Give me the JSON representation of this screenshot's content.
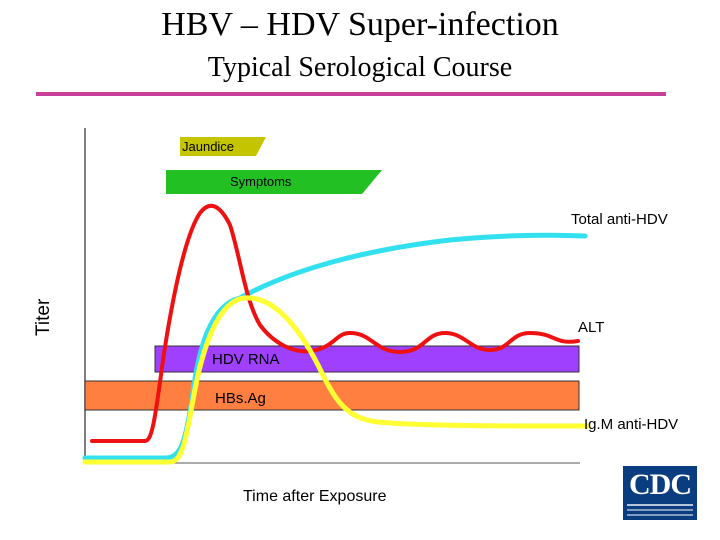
{
  "slide": {
    "title": "HBV – HDV Super-infection",
    "subtitle": "Typical Serological Course",
    "accent_color": "#c8409a"
  },
  "axes": {
    "ylabel": "Titer",
    "xlabel": "Time after Exposure"
  },
  "bars": {
    "jaundice": {
      "label": "Jaundice",
      "color": "#c4c400"
    },
    "symptoms": {
      "label": "Symptoms",
      "color": "#22c022"
    },
    "hdv_rna": {
      "label": "HDV RNA",
      "color": "#a040ff"
    },
    "hbsag": {
      "label": "HBs.Ag",
      "color": "#ff7f40"
    }
  },
  "curves": {
    "total_anti_hdv": {
      "label": "Total anti-HDV",
      "color": "#33e0f0"
    },
    "alt": {
      "label": "ALT",
      "color": "#ee1111"
    },
    "igm_anti_hdv": {
      "label": "Ig.M anti-HDV",
      "color": "#ffff33"
    }
  },
  "logo": {
    "text": "CDC",
    "icon": "cdc-logo-icon"
  }
}
